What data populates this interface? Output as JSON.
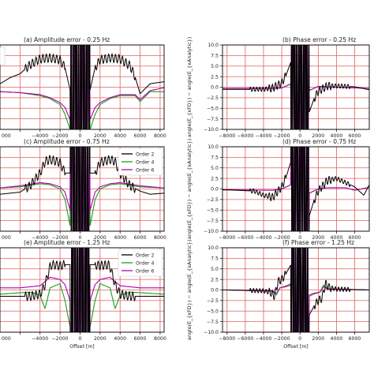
{
  "figure": {
    "xlabel": "Offset [m]",
    "phase_ylabel": "angle(E_{xFD}) − angle(E_{xAnalytic})"
  },
  "legend": [
    "Order 2",
    "Order 4",
    "Order 6"
  ],
  "colors": {
    "order2": "#000000",
    "order4": "#1a9e1a",
    "order6": "#b200b2",
    "grid": "#e06060"
  },
  "chart_data": [
    {
      "id": "amp_025",
      "type": "line",
      "title": "(a) Amplitude error - 0.25 Hz",
      "xlabel": "",
      "xticks": [
        "000",
        "−4000",
        "−2000",
        "0",
        "2000",
        "4000",
        "6000",
        "8000"
      ],
      "xlim": [
        -8000,
        8400
      ],
      "ylim": [
        -3,
        5.5
      ],
      "legend": false,
      "series": [
        {
          "name": "Order 2",
          "key": "order2",
          "x": [
            -8000,
            -7000,
            -6000,
            -5000,
            -4000,
            -3000,
            -2000,
            -1500,
            -1000,
            1000,
            1500,
            2000,
            3000,
            4000,
            5000,
            5500,
            6000,
            7000,
            8400
          ],
          "y": [
            1.6,
            2.2,
            2.6,
            3.5,
            4.1,
            4.2,
            4.0,
            3.2,
            1.0,
            1.0,
            3.2,
            4.0,
            4.2,
            4.1,
            3.4,
            2.3,
            0.6,
            1.6,
            1.8
          ]
        },
        {
          "name": "Order 4",
          "key": "order4",
          "x": [
            -8000,
            -6000,
            -4000,
            -3000,
            -2000,
            -1500,
            -1000,
            1000,
            1500,
            2000,
            3000,
            4000,
            5500,
            6000,
            7000,
            8400
          ],
          "y": [
            0.8,
            0.7,
            0.4,
            0.1,
            -0.5,
            -1.5,
            -3.0,
            -3.0,
            -1.5,
            -0.5,
            0.1,
            0.4,
            0.4,
            -0.2,
            0.8,
            0.8
          ]
        },
        {
          "name": "Order 6",
          "key": "order6",
          "x": [
            -8000,
            -6000,
            -4000,
            -3000,
            -2000,
            -1500,
            -1000,
            1000,
            1500,
            2000,
            3000,
            4000,
            5500,
            6000,
            7000,
            8400
          ],
          "y": [
            0.8,
            0.7,
            0.5,
            0.2,
            -0.3,
            -0.8,
            -2.0,
            -2.0,
            -0.8,
            -0.3,
            0.2,
            0.5,
            0.5,
            0.0,
            0.9,
            1.2
          ]
        }
      ]
    },
    {
      "id": "phase_025",
      "type": "line",
      "title": "(b) Phase error - 0.25 Hz",
      "xlabel": "",
      "xticks": [
        "−8000",
        "−6000",
        "−4000",
        "−2000",
        "0",
        "2000",
        "4000",
        "6000"
      ],
      "yticks": [
        "−10.0",
        "−7.5",
        "−5.0",
        "−2.5",
        "0.0",
        "2.5",
        "5.0",
        "7.5",
        "10.0"
      ],
      "xlim": [
        -8500,
        7600
      ],
      "ylim": [
        -10,
        10
      ],
      "legend": false,
      "series": [
        {
          "name": "Order 2",
          "key": "order2",
          "x": [
            -8000,
            -4000,
            -3000,
            -2000,
            -1500,
            -1000,
            1000,
            1500,
            2000,
            3000,
            4000,
            6000,
            7600
          ],
          "y": [
            -0.5,
            -0.5,
            -0.2,
            1.0,
            3.0,
            6.0,
            -6.0,
            -3.0,
            -1.0,
            0.3,
            0.3,
            0.1,
            -0.6
          ]
        },
        {
          "name": "Order 4",
          "key": "order4",
          "x": [
            -8000,
            -3000,
            -2000,
            -1000,
            1000,
            2000,
            3000,
            7600
          ],
          "y": [
            -0.3,
            -0.3,
            -0.2,
            0.8,
            -0.8,
            0.2,
            0.1,
            -0.3
          ]
        },
        {
          "name": "Order 6",
          "key": "order6",
          "x": [
            -8000,
            -3000,
            -2000,
            -1000,
            1000,
            2000,
            3000,
            7600
          ],
          "y": [
            -0.3,
            -0.3,
            -0.2,
            0.8,
            -0.8,
            0.2,
            0.1,
            -0.3
          ]
        }
      ]
    },
    {
      "id": "amp_075",
      "type": "line",
      "title": "(c) Amplitude error - 0.75 Hz",
      "xlabel": "",
      "xticks": [
        "000",
        "−4000",
        "−2000",
        "0",
        "2000",
        "4000",
        "6000",
        "8000"
      ],
      "xlim": [
        -8000,
        8400
      ],
      "ylim": [
        -4,
        4
      ],
      "legend": true,
      "series": [
        {
          "name": "Order 2",
          "key": "order2",
          "x": [
            -8000,
            -7000,
            -6000,
            -5000,
            -4000,
            -3500,
            -3000,
            -2000,
            -1500,
            1500,
            2000,
            3000,
            3500,
            4000,
            5000,
            6000,
            7000,
            8400
          ],
          "y": [
            -0.5,
            -0.4,
            -0.3,
            0.3,
            1.5,
            2.6,
            2.8,
            2.5,
            1.5,
            1.5,
            2.5,
            2.8,
            2.6,
            1.5,
            0.3,
            -0.2,
            -0.5,
            -0.4
          ]
        },
        {
          "name": "Order 4",
          "key": "order4",
          "x": [
            -8000,
            -6000,
            -4000,
            -3000,
            -2000,
            -1500,
            -1000,
            1000,
            1500,
            2000,
            3000,
            4000,
            6000,
            8400
          ],
          "y": [
            0.1,
            0.2,
            0.5,
            0.4,
            0.0,
            -1.0,
            -3.5,
            -3.5,
            -1.0,
            0.0,
            0.4,
            0.5,
            0.2,
            0.1
          ]
        },
        {
          "name": "Order 6",
          "key": "order6",
          "x": [
            -8000,
            -6000,
            -4000,
            -3000,
            -2000,
            -1500,
            -1000,
            1000,
            1500,
            2000,
            3000,
            4000,
            6000,
            8400
          ],
          "y": [
            0.1,
            0.3,
            0.6,
            0.5,
            0.2,
            -0.3,
            -2.0,
            -2.0,
            -0.3,
            0.2,
            0.5,
            0.6,
            0.3,
            0.1
          ]
        }
      ]
    },
    {
      "id": "phase_075",
      "type": "line",
      "title": "(d) Phase error - 0.75 Hz",
      "xlabel": "",
      "xticks": [
        "−8000",
        "−6000",
        "−4000",
        "−2000",
        "0",
        "2000",
        "4000",
        "6000"
      ],
      "yticks": [
        "−10.0",
        "−7.5",
        "−5.0",
        "−2.5",
        "0.0",
        "2.5",
        "5.0",
        "7.5",
        "10.0"
      ],
      "xlim": [
        -8500,
        7600
      ],
      "ylim": [
        -10,
        10
      ],
      "legend": false,
      "series": [
        {
          "name": "Order 2",
          "key": "order2",
          "x": [
            -8000,
            -5000,
            -4000,
            -3000,
            -2000,
            -1500,
            -1000,
            1000,
            1500,
            2000,
            3000,
            4000,
            5000,
            6000,
            7000,
            7600
          ],
          "y": [
            -0.2,
            -0.5,
            -1.5,
            -2.0,
            0.5,
            3.0,
            6.5,
            -6.5,
            -3.0,
            -0.5,
            2.0,
            2.5,
            1.5,
            0.5,
            -1.5,
            1.0
          ]
        },
        {
          "name": "Order 4",
          "key": "order4",
          "x": [
            -8000,
            -4000,
            -3000,
            -2000,
            -1000,
            1000,
            2000,
            3000,
            5000,
            6000,
            7600
          ],
          "y": [
            -0.2,
            -0.3,
            -0.3,
            0.0,
            1.0,
            -1.0,
            0.0,
            0.3,
            0.3,
            -0.3,
            0.4
          ]
        },
        {
          "name": "Order 6",
          "key": "order6",
          "x": [
            -8000,
            -4000,
            -3000,
            -2000,
            -1000,
            1000,
            2000,
            3000,
            5000,
            6000,
            7600
          ],
          "y": [
            -0.2,
            -0.3,
            -0.3,
            0.0,
            1.0,
            -1.0,
            0.0,
            0.3,
            0.3,
            -0.3,
            0.4
          ]
        }
      ]
    },
    {
      "id": "amp_125",
      "type": "line",
      "title": "(e) Amplitude error - 1.25 Hz",
      "xlabel": "Offset [m]",
      "xticks": [
        "000",
        "−4000",
        "−2000",
        "0",
        "2000",
        "4000",
        "6000",
        "8000"
      ],
      "xlim": [
        -8000,
        8400
      ],
      "ylim": [
        -4,
        4
      ],
      "legend": true,
      "series": [
        {
          "name": "Order 2",
          "key": "order2",
          "x": [
            -8000,
            -5000,
            -4000,
            -3500,
            -3000,
            -2800,
            -2000,
            -1500,
            1500,
            2000,
            2800,
            3000,
            3500,
            4000,
            5000,
            8400
          ],
          "y": [
            -0.6,
            -0.6,
            -0.4,
            0.5,
            2.2,
            2.4,
            2.3,
            2.4,
            2.4,
            2.3,
            2.4,
            2.2,
            0.5,
            -0.4,
            -0.6,
            -0.6
          ]
        },
        {
          "name": "Order 4",
          "key": "order4",
          "x": [
            -8000,
            -5000,
            -4000,
            -3500,
            -3000,
            -2000,
            -1500,
            -1000,
            1000,
            1500,
            2000,
            3000,
            3500,
            4000,
            5000,
            8400
          ],
          "y": [
            -0.4,
            -0.2,
            -0.5,
            -1.8,
            0.2,
            0.6,
            -1.0,
            -3.5,
            -3.5,
            -1.0,
            0.6,
            0.2,
            -1.8,
            -0.5,
            -0.2,
            -0.4
          ]
        },
        {
          "name": "Order 6",
          "key": "order6",
          "x": [
            -8000,
            -6000,
            -4000,
            -3000,
            -2000,
            -1500,
            -1000,
            1000,
            1500,
            2000,
            3000,
            4000,
            6000,
            8400
          ],
          "y": [
            0.2,
            0.2,
            0.4,
            1.2,
            1.0,
            0.5,
            -1.0,
            -1.0,
            0.5,
            1.0,
            1.2,
            0.4,
            0.2,
            0.2
          ]
        }
      ]
    },
    {
      "id": "phase_125",
      "type": "line",
      "title": "(f) Phase error - 1.25 Hz",
      "xlabel": "Offset [m]",
      "xticks": [
        "−8000",
        "−6000",
        "−4000",
        "−2000",
        "0",
        "2000",
        "4000",
        "6000"
      ],
      "yticks": [
        "−10.0",
        "−7.5",
        "−5.0",
        "−2.5",
        "0.0",
        "2.5",
        "5.0",
        "7.5",
        "10.0"
      ],
      "xlim": [
        -8500,
        7600
      ],
      "ylim": [
        -10,
        10
      ],
      "legend": false,
      "series": [
        {
          "name": "Order 2",
          "key": "order2",
          "x": [
            -8000,
            -4000,
            -3200,
            -2800,
            -2400,
            -2000,
            -1500,
            -1000,
            1000,
            1500,
            2000,
            2400,
            2800,
            3200,
            4000,
            7600
          ],
          "y": [
            0.0,
            -0.2,
            -0.6,
            -1.5,
            2.0,
            2.5,
            4.0,
            6.0,
            -6.0,
            -4.0,
            -2.5,
            -2.0,
            1.5,
            0.6,
            0.2,
            0.0
          ]
        },
        {
          "name": "Order 4",
          "key": "order4",
          "x": [
            -8000,
            -3000,
            -2600,
            -2200,
            -1500,
            -1000,
            1000,
            1500,
            2200,
            2600,
            3000,
            7600
          ],
          "y": [
            0.0,
            -0.3,
            -1.2,
            0.5,
            1.0,
            1.5,
            -1.5,
            -1.0,
            -0.5,
            1.2,
            0.3,
            0.0
          ]
        },
        {
          "name": "Order 6",
          "key": "order6",
          "x": [
            -8000,
            -3000,
            -2600,
            -2200,
            -1500,
            -1000,
            1000,
            1500,
            2200,
            2600,
            3000,
            7600
          ],
          "y": [
            0.0,
            -0.2,
            -0.8,
            0.5,
            0.8,
            1.2,
            -1.2,
            -0.8,
            -0.5,
            0.8,
            0.2,
            0.0
          ]
        }
      ]
    }
  ]
}
